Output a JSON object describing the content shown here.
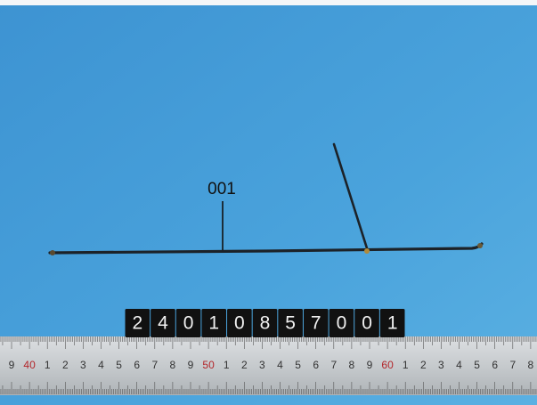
{
  "label": {
    "text": "001"
  },
  "tiles": [
    "2",
    "4",
    "0",
    "1",
    "0",
    "8",
    "5",
    "7",
    "0",
    "0",
    "1"
  ],
  "ruler": {
    "labels": [
      "9",
      "40",
      "1",
      "2",
      "3",
      "4",
      "5",
      "6",
      "7",
      "8",
      "9",
      "50",
      "1",
      "2",
      "3",
      "4",
      "5",
      "6",
      "7",
      "8",
      "9",
      "60",
      "1",
      "2",
      "3",
      "4",
      "5",
      "6",
      "7",
      "8"
    ]
  }
}
